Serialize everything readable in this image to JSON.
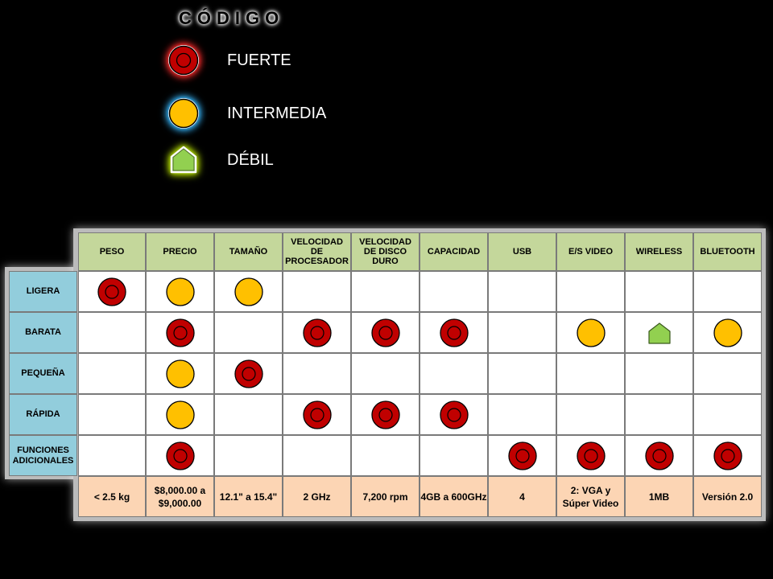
{
  "legend": {
    "title": "CÓDIGO",
    "items": [
      {
        "key": "fuerte",
        "label": "FUERTE",
        "icon": "red-circle-icon",
        "color": "#c00000"
      },
      {
        "key": "intermedia",
        "label": "INTERMEDIA",
        "icon": "yellow-circle-icon",
        "color": "#ffc000"
      },
      {
        "key": "debil",
        "label": "DÉBIL",
        "icon": "green-house-icon",
        "color": "#92d050"
      }
    ]
  },
  "matrix": {
    "columns": [
      "PESO",
      "PRECIO",
      "TAMAÑO",
      "VELOCIDAD DE PROCESADOR",
      "VELOCIDAD DE DISCO DURO",
      "CAPACIDAD",
      "USB",
      "E/S VIDEO",
      "WIRELESS",
      "BLUETOOTH"
    ],
    "rows": [
      {
        "label": "LIGERA",
        "cells": [
          "fuerte",
          "intermedia",
          "intermedia",
          "",
          "",
          "",
          "",
          "",
          "",
          ""
        ]
      },
      {
        "label": "BARATA",
        "cells": [
          "",
          "fuerte",
          "",
          "fuerte",
          "fuerte",
          "fuerte",
          "",
          "intermedia",
          "debil",
          "intermedia"
        ]
      },
      {
        "label": "PEQUEÑA",
        "cells": [
          "",
          "intermedia",
          "fuerte",
          "",
          "",
          "",
          "",
          "",
          "",
          ""
        ]
      },
      {
        "label": "RÁPIDA",
        "cells": [
          "",
          "intermedia",
          "",
          "fuerte",
          "fuerte",
          "fuerte",
          "",
          "",
          "",
          ""
        ]
      },
      {
        "label": "FUNCIONES ADICIONALES",
        "cells": [
          "",
          "fuerte",
          "",
          "",
          "",
          "",
          "fuerte",
          "fuerte",
          "fuerte",
          "fuerte"
        ]
      }
    ],
    "specs": [
      "< 2.5 kg",
      "$8,000.00 a $9,000.00",
      "12.1\" a 15.4\"",
      "2 GHz",
      "7,200 rpm",
      "4GB a 600GHz",
      "4",
      "2: VGA y Súper Video",
      "1MB",
      "Versión 2.0"
    ]
  }
}
